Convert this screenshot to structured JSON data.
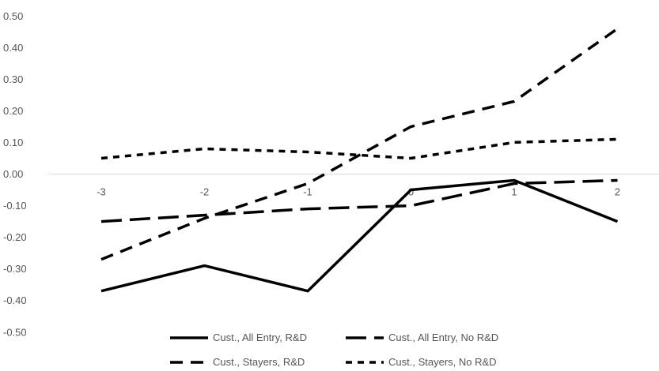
{
  "chart_data": {
    "type": "line",
    "title": "",
    "xlabel": "",
    "ylabel": "",
    "x": [
      -3,
      -2,
      -1,
      0,
      1,
      2
    ],
    "x_tick_labels": [
      "-3",
      "-2",
      "-1",
      "0",
      "1",
      "2"
    ],
    "y_tick_labels": [
      "0.50",
      "0.40",
      "0.30",
      "0.20",
      "0.10",
      "0.00",
      "-0.10",
      "-0.20",
      "-0.30",
      "-0.40",
      "-0.50"
    ],
    "ylim": [
      -0.5,
      0.5
    ],
    "grid": false,
    "legend_position": "bottom",
    "series": [
      {
        "name": "Cust., All Entry, R&D",
        "values": [
          -0.37,
          -0.29,
          -0.37,
          -0.05,
          -0.02,
          -0.15
        ],
        "color": "#000000",
        "style": "solid"
      },
      {
        "name": "Cust., All Entry, No R&D",
        "values": [
          -0.15,
          -0.13,
          -0.11,
          -0.1,
          -0.03,
          -0.02
        ],
        "color": "#000000",
        "style": "long-dash"
      },
      {
        "name": "Cust., Stayers, R&D",
        "values": [
          -0.27,
          -0.14,
          -0.03,
          0.15,
          0.23,
          0.46
        ],
        "color": "#000000",
        "style": "dash"
      },
      {
        "name": "Cust., Stayers, No R&D",
        "values": [
          0.05,
          0.08,
          0.07,
          0.05,
          0.1,
          0.11
        ],
        "color": "#000000",
        "style": "short-dash"
      }
    ]
  }
}
